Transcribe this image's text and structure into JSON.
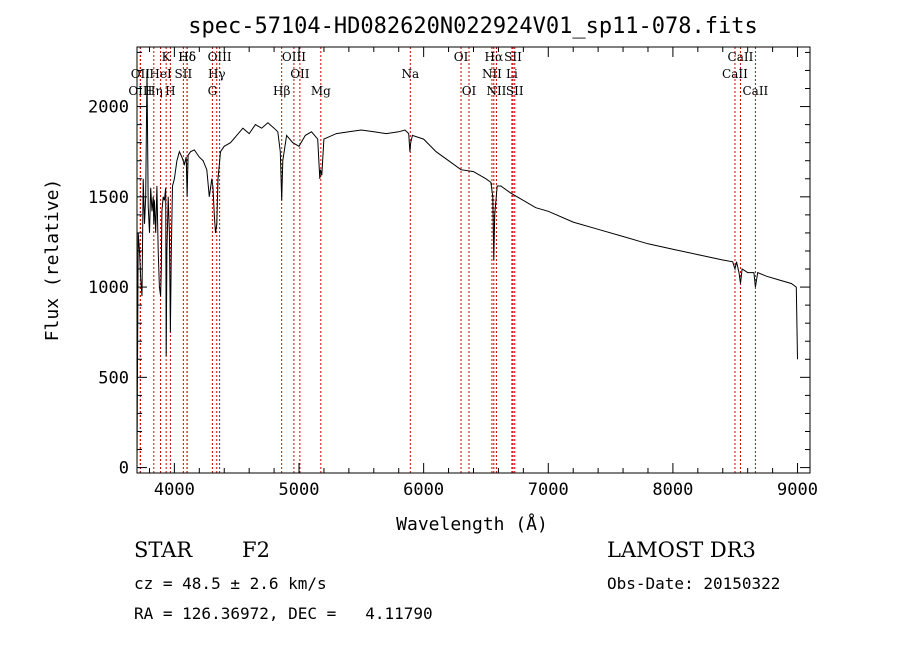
{
  "chart_data": {
    "type": "line",
    "title": "spec-57104-HD082620N022924V01_sp11-078.fits",
    "xlabel": "Wavelength (Å)",
    "ylabel": "Flux (relative)",
    "xlim": [
      3700,
      9100
    ],
    "ylim": [
      -30,
      2330
    ],
    "xticks": [
      4000,
      5000,
      6000,
      7000,
      8000,
      9000
    ],
    "yticks": [
      0,
      500,
      1000,
      1500,
      2000
    ],
    "grid": false,
    "line_color": "#000000",
    "marker_color": "#cc0000",
    "series": [
      {
        "x": [
          3700,
          3710,
          3720,
          3730,
          3740,
          3750,
          3760,
          3770,
          3780,
          3790,
          3800,
          3810,
          3820,
          3830,
          3835,
          3840,
          3850,
          3860,
          3870,
          3880,
          3889,
          3895,
          3900,
          3910,
          3920,
          3930,
          3934,
          3940,
          3950,
          3960,
          3968,
          3975,
          3985,
          4000,
          4020,
          4040,
          4060,
          4080,
          4095,
          4102,
          4110,
          4130,
          4160,
          4200,
          4230,
          4260,
          4280,
          4300,
          4310,
          4320,
          4330,
          4340,
          4350,
          4370,
          4400,
          4450,
          4500,
          4550,
          4600,
          4650,
          4700,
          4750,
          4800,
          4830,
          4850,
          4861,
          4870,
          4900,
          4950,
          5000,
          5050,
          5100,
          5150,
          5167,
          5172,
          5183,
          5200,
          5300,
          5400,
          5500,
          5600,
          5700,
          5800,
          5850,
          5880,
          5890,
          5896,
          5910,
          6000,
          6100,
          6200,
          6300,
          6400,
          6450,
          6500,
          6540,
          6555,
          6563,
          6570,
          6590,
          6620,
          6700,
          6800,
          6900,
          7000,
          7200,
          7400,
          7600,
          7800,
          8000,
          8200,
          8400,
          8480,
          8498,
          8510,
          8530,
          8542,
          8555,
          8600,
          8650,
          8662,
          8680,
          8750,
          8850,
          8950,
          8990,
          9000
        ],
        "y": [
          20,
          1300,
          1200,
          1050,
          950,
          1600,
          1350,
          1500,
          2200,
          1450,
          1300,
          1550,
          1420,
          1500,
          1350,
          1480,
          1300,
          1560,
          1200,
          1000,
          950,
          1100,
          1420,
          1500,
          1480,
          1550,
          620,
          1200,
          1500,
          1300,
          750,
          1200,
          1560,
          1600,
          1700,
          1750,
          1720,
          1680,
          1720,
          1500,
          1730,
          1750,
          1760,
          1720,
          1700,
          1650,
          1500,
          1600,
          1550,
          1400,
          1300,
          1350,
          1600,
          1750,
          1780,
          1800,
          1840,
          1880,
          1850,
          1900,
          1880,
          1910,
          1880,
          1860,
          1750,
          1480,
          1700,
          1840,
          1800,
          1780,
          1840,
          1860,
          1820,
          1600,
          1650,
          1620,
          1820,
          1850,
          1860,
          1870,
          1860,
          1850,
          1860,
          1870,
          1850,
          1750,
          1800,
          1840,
          1820,
          1750,
          1700,
          1650,
          1640,
          1620,
          1600,
          1580,
          1500,
          1150,
          1400,
          1560,
          1560,
          1520,
          1480,
          1440,
          1420,
          1360,
          1320,
          1280,
          1240,
          1210,
          1180,
          1150,
          1140,
          1100,
          1140,
          1080,
          1020,
          1100,
          1080,
          1080,
          1000,
          1080,
          1060,
          1040,
          1020,
          1000,
          600
        ]
      }
    ],
    "lines": [
      {
        "label": "Hδ",
        "wave": 4102,
        "row": 1
      },
      {
        "label": "OII",
        "wave": 3727,
        "row": 2
      },
      {
        "label": "OIII",
        "wave": 3727,
        "row": 3
      },
      {
        "label": "HeI",
        "wave": 3889,
        "row": 2
      },
      {
        "label": "K",
        "wave": 3934,
        "row": 1
      },
      {
        "label": "Hη",
        "wave": 3835,
        "row": 3
      },
      {
        "label": "H",
        "wave": 3968,
        "row": 3
      },
      {
        "label": "SII",
        "wave": 4072,
        "row": 2
      },
      {
        "label": "Hδ",
        "wave": 4102,
        "row": 1
      },
      {
        "label": "OIII",
        "wave": 4363,
        "row": 1
      },
      {
        "label": "Hγ",
        "wave": 4340,
        "row": 2
      },
      {
        "label": "G",
        "wave": 4305,
        "row": 3
      },
      {
        "label": "Hβ",
        "wave": 4861,
        "row": 3
      },
      {
        "label": "OIII",
        "wave": 4959,
        "row": 1
      },
      {
        "label": "OII",
        "wave": 5007,
        "row": 2
      },
      {
        "label": "Mg",
        "wave": 5175,
        "row": 3
      },
      {
        "label": "Na",
        "wave": 5893,
        "row": 2
      },
      {
        "label": "OI",
        "wave": 6300,
        "row": 1
      },
      {
        "label": "OI",
        "wave": 6364,
        "row": 3
      },
      {
        "label": "Hα",
        "wave": 6563,
        "row": 1
      },
      {
        "label": "NII",
        "wave": 6548,
        "row": 2
      },
      {
        "label": "SII",
        "wave": 6717,
        "row": 1
      },
      {
        "label": "NII",
        "wave": 6584,
        "row": 3
      },
      {
        "label": "Li",
        "wave": 6708,
        "row": 2
      },
      {
        "label": "SII",
        "wave": 6731,
        "row": 3
      },
      {
        "label": "CaII",
        "wave": 8542,
        "row": 1
      },
      {
        "label": "CaII",
        "wave": 8498,
        "row": 2
      },
      {
        "label": "CaII",
        "wave": 8662,
        "row": 3
      }
    ]
  },
  "info": {
    "object_class": "STAR",
    "subclass": "F2",
    "survey": "LAMOST DR3",
    "redshift": "cz = 48.5 ± 2.6 km/s",
    "obs_date": "Obs-Date: 20150322",
    "coords": "RA = 126.36972, DEC =   4.11790"
  }
}
